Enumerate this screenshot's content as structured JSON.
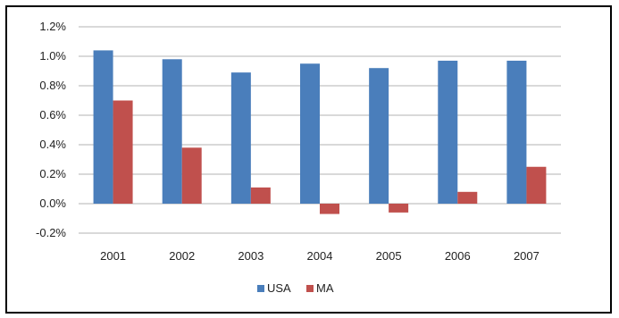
{
  "chart_data": {
    "type": "bar",
    "categories": [
      "2001",
      "2002",
      "2003",
      "2004",
      "2005",
      "2006",
      "2007"
    ],
    "series": [
      {
        "name": "USA",
        "color": "#4a7ebb",
        "values": [
          1.04,
          0.98,
          0.89,
          0.95,
          0.92,
          0.97,
          0.97
        ]
      },
      {
        "name": "MA",
        "color": "#c0504d",
        "values": [
          0.7,
          0.38,
          0.11,
          -0.07,
          -0.06,
          0.08,
          0.25
        ]
      }
    ],
    "ylim": [
      -0.2,
      1.2
    ],
    "yticks": [
      -0.2,
      0.0,
      0.2,
      0.4,
      0.6,
      0.8,
      1.0,
      1.2
    ],
    "ytick_labels": [
      "-0.2%",
      "0.0%",
      "0.2%",
      "0.4%",
      "0.6%",
      "0.8%",
      "1.0%",
      "1.2%"
    ],
    "grid": true,
    "legend_position": "bottom",
    "title": "",
    "xlabel": "",
    "ylabel": ""
  }
}
